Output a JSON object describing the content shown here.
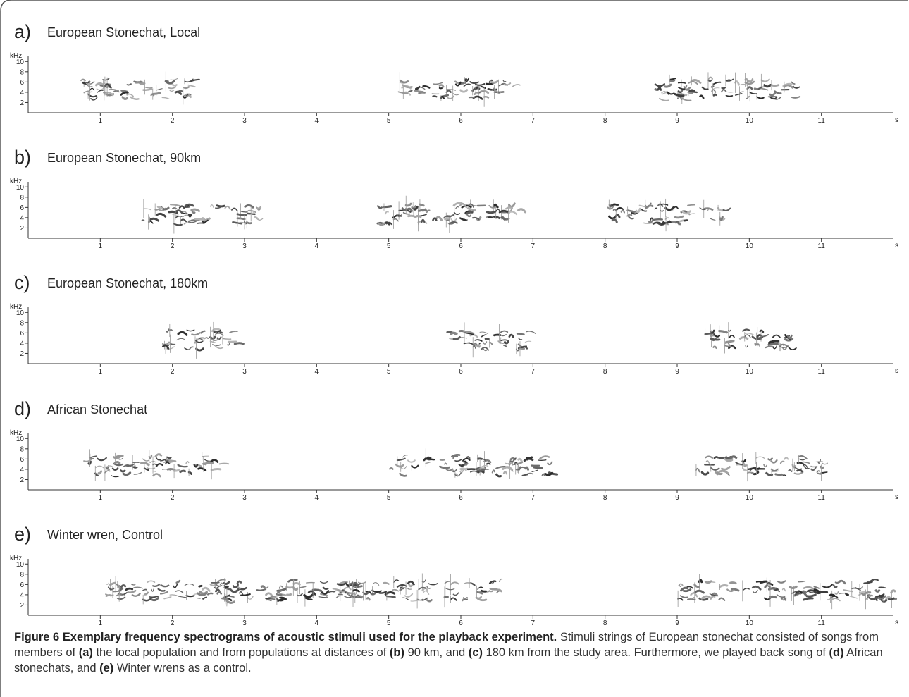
{
  "chart_data": [
    {
      "type": "spectrogram",
      "panel_label": "a)",
      "title": "European Stonechat, Local",
      "y_label": "kHz",
      "x_label": "s",
      "xlim": [
        0,
        12
      ],
      "ylim": [
        0,
        11
      ],
      "xticks": [
        1,
        2,
        3,
        4,
        5,
        6,
        7,
        8,
        9,
        10,
        11
      ],
      "yticks": [
        2,
        4,
        6,
        8,
        10
      ]
    },
    {
      "type": "spectrogram",
      "panel_label": "b)",
      "title": "European Stonechat, 90km",
      "y_label": "kHz",
      "x_label": "s",
      "xlim": [
        0,
        12
      ],
      "ylim": [
        0,
        11
      ],
      "xticks": [
        1,
        2,
        3,
        4,
        5,
        6,
        7,
        8,
        9,
        10,
        11
      ],
      "yticks": [
        2,
        4,
        6,
        8,
        10
      ]
    },
    {
      "type": "spectrogram",
      "panel_label": "c)",
      "title": "European Stonechat, 180km",
      "y_label": "kHz",
      "x_label": "s",
      "xlim": [
        0,
        12
      ],
      "ylim": [
        0,
        11
      ],
      "xticks": [
        1,
        2,
        3,
        4,
        5,
        6,
        7,
        8,
        9,
        10,
        11
      ],
      "yticks": [
        2,
        4,
        6,
        8,
        10
      ]
    },
    {
      "type": "spectrogram",
      "panel_label": "d)",
      "title": "African Stonechat",
      "y_label": "kHz",
      "x_label": "s",
      "xlim": [
        0,
        12
      ],
      "ylim": [
        0,
        11
      ],
      "xticks": [
        1,
        2,
        3,
        4,
        5,
        6,
        7,
        8,
        9,
        10,
        11
      ],
      "yticks": [
        2,
        4,
        6,
        8,
        10
      ]
    },
    {
      "type": "spectrogram",
      "panel_label": "e)",
      "title": "Winter wren, Control",
      "y_label": "kHz",
      "x_label": "s",
      "xlim": [
        0,
        12
      ],
      "ylim": [
        0,
        11
      ],
      "xticks": [
        1,
        2,
        3,
        4,
        5,
        6,
        7,
        8,
        9,
        10,
        11
      ],
      "yticks": [
        2,
        4,
        6,
        8,
        10
      ]
    }
  ],
  "caption": [
    {
      "text": "Figure 6 Exemplary frequency spectrograms of acoustic stimuli used for the playback experiment.",
      "bold": true
    },
    {
      "text": " Stimuli strings of European stonechat consisted of songs from members of ",
      "bold": false
    },
    {
      "text": "(a)",
      "bold": true
    },
    {
      "text": " the local population and from populations at distances of ",
      "bold": false
    },
    {
      "text": "(b)",
      "bold": true
    },
    {
      "text": " 90 km, and ",
      "bold": false
    },
    {
      "text": "(c)",
      "bold": true
    },
    {
      "text": " 180 km from the study area. Furthermore, we played back song of ",
      "bold": false
    },
    {
      "text": "(d)",
      "bold": true
    },
    {
      "text": " African stonechats, and ",
      "bold": false
    },
    {
      "text": "(e)",
      "bold": true
    },
    {
      "text": " Winter wrens as a control.",
      "bold": false
    }
  ]
}
